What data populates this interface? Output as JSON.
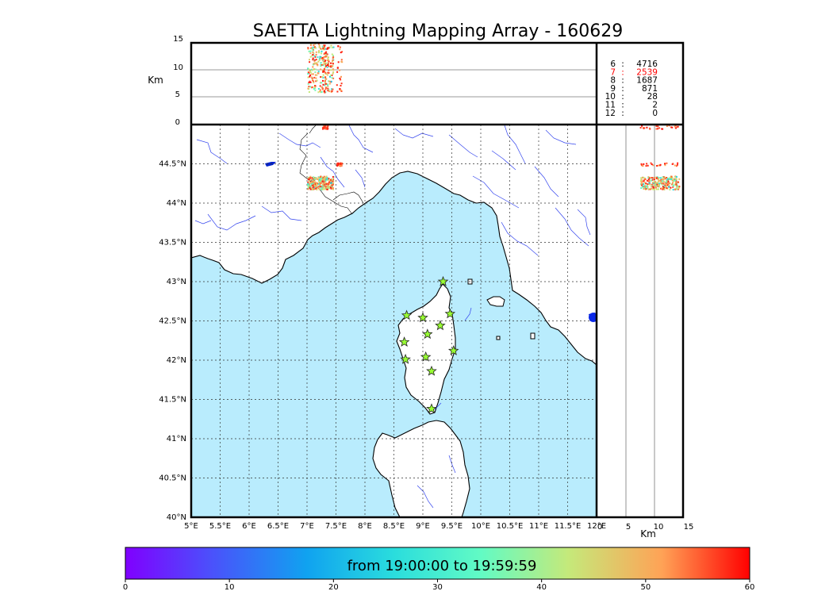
{
  "title": "SAETTA Lightning Mapping Array - 160629",
  "colorbar": {
    "label": "from 19:00:00 to 19:59:59",
    "ticks": [
      "0",
      "10",
      "20",
      "30",
      "40",
      "50",
      "60"
    ],
    "range": [
      0,
      60
    ]
  },
  "map": {
    "lon_ticks": [
      "5°E",
      "5.5°E",
      "6°E",
      "6.5°E",
      "7°E",
      "7.5°E",
      "8°E",
      "8.5°E",
      "9°E",
      "9.5°E",
      "10°E",
      "10.5°E",
      "11°E",
      "11.5°E",
      "12°E"
    ],
    "lat_ticks": [
      "44.5°N",
      "44°N",
      "43.5°N",
      "43°N",
      "42.5°N",
      "42°N",
      "41.5°N",
      "41°N",
      "40.5°N",
      "40°N"
    ],
    "lon_range": [
      5,
      12
    ],
    "lat_range": [
      40,
      45
    ],
    "sea_color": "#b9ecfd",
    "river_color": "#2233ee",
    "stations": [
      {
        "lon": 9.35,
        "lat": 43.0
      },
      {
        "lon": 8.72,
        "lat": 42.57
      },
      {
        "lon": 9.0,
        "lat": 42.54
      },
      {
        "lon": 9.47,
        "lat": 42.59
      },
      {
        "lon": 9.3,
        "lat": 42.44
      },
      {
        "lon": 9.08,
        "lat": 42.33
      },
      {
        "lon": 8.68,
        "lat": 42.23
      },
      {
        "lon": 9.53,
        "lat": 42.12
      },
      {
        "lon": 8.7,
        "lat": 42.01
      },
      {
        "lon": 9.05,
        "lat": 42.04
      },
      {
        "lon": 9.15,
        "lat": 41.86
      },
      {
        "lon": 9.15,
        "lat": 41.38
      }
    ]
  },
  "alt_lon": {
    "ylabel": "Km",
    "yticks": [
      "15",
      "10",
      "5",
      "0"
    ],
    "range": [
      0,
      15
    ]
  },
  "alt_lat": {
    "xlabel": "Km",
    "xticks": [
      "0",
      "5",
      "10",
      "15"
    ],
    "range": [
      0,
      15
    ]
  },
  "counts": [
    {
      "n": "6",
      "v": "4716",
      "color": "#000000"
    },
    {
      "n": "7",
      "v": "2539",
      "color": "#ff0000"
    },
    {
      "n": "8",
      "v": "1687",
      "color": "#000000"
    },
    {
      "n": "9",
      "v": "871",
      "color": "#000000"
    },
    {
      "n": "10",
      "v": "28",
      "color": "#000000"
    },
    {
      "n": "11",
      "v": "2",
      "color": "#000000"
    },
    {
      "n": "12",
      "v": "0",
      "color": "#000000"
    }
  ],
  "chart_data": {
    "type": "scatter",
    "title": "SAETTA Lightning Mapping Array - 160629",
    "x_axis": "Longitude",
    "y_axis": "Latitude",
    "xlim": [
      5,
      12
    ],
    "ylim": [
      40,
      45
    ],
    "altitude_range_km": [
      0,
      15
    ],
    "colorscale_range_minutes": [
      0,
      60
    ],
    "clusters": [
      {
        "lon_range": [
          7.0,
          7.45
        ],
        "lat_range": [
          44.18,
          44.35
        ],
        "alt_range_km": [
          5,
          15
        ],
        "time_range_min": [
          20,
          60
        ]
      },
      {
        "lon_range": [
          7.25,
          7.35
        ],
        "lat_range": [
          44.95,
          45.0
        ],
        "alt_range_km": [
          5,
          15
        ],
        "time_range_min": [
          50,
          60
        ]
      },
      {
        "lon_range": [
          7.5,
          7.6
        ],
        "lat_range": [
          44.48,
          44.52
        ],
        "alt_range_km": [
          5,
          15
        ],
        "time_range_min": [
          50,
          60
        ]
      }
    ],
    "source_counts": [
      {
        "stations": 6,
        "count": 4716
      },
      {
        "stations": 7,
        "count": 2539
      },
      {
        "stations": 8,
        "count": 1687
      },
      {
        "stations": 9,
        "count": 871
      },
      {
        "stations": 10,
        "count": 28
      },
      {
        "stations": 11,
        "count": 2
      },
      {
        "stations": 12,
        "count": 0
      }
    ],
    "grid": true
  }
}
